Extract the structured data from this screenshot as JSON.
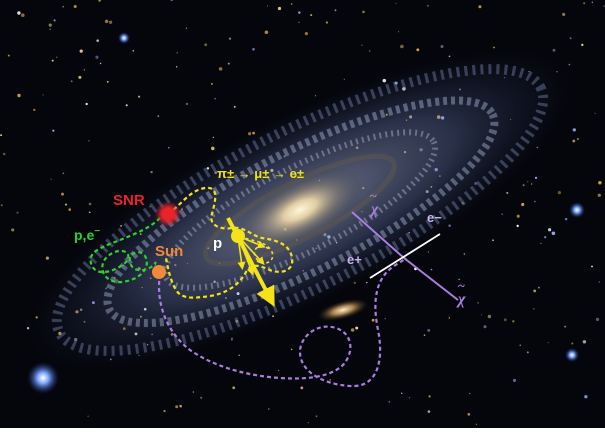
{
  "labels": {
    "snr": "SNR",
    "particles": "p,e",
    "particles_sup": "−",
    "sun": "Sun",
    "proton": "p",
    "decay_chain": "π± → μ± → e±",
    "chi_top": "χ",
    "chi_bottom": "χ",
    "tilde": "~",
    "e_minus": "e−",
    "e_plus": "e+"
  },
  "colors": {
    "snr": "#e8232a",
    "sun": "#f08a3a",
    "proton_path": "#f5e31a",
    "lepton_path": "#2ed12e",
    "dark_matter": "#a97ee0",
    "space": "#05060c"
  }
}
